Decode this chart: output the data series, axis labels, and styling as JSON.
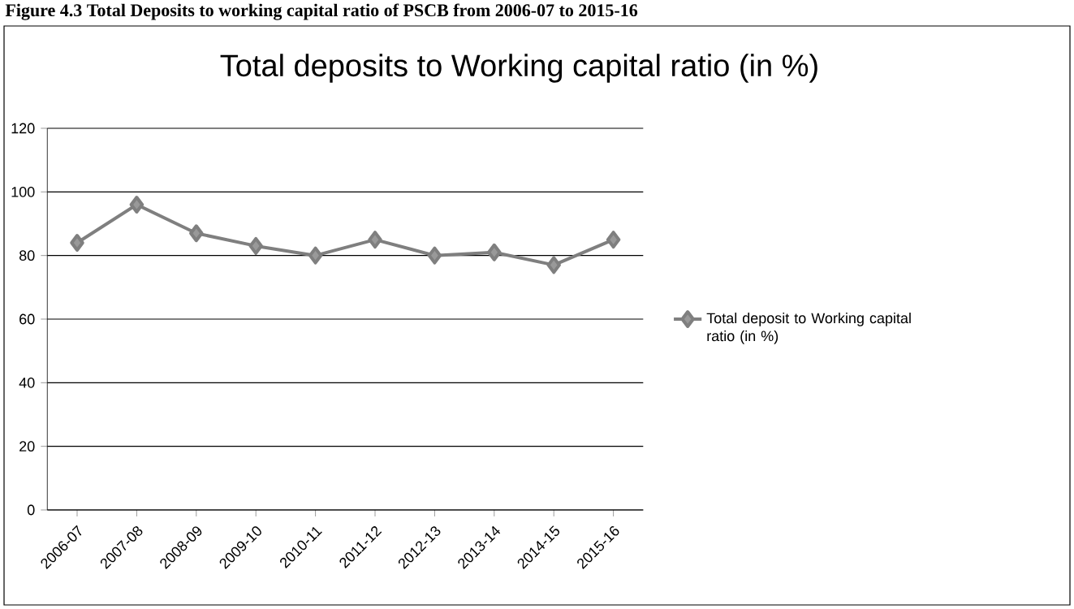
{
  "chart_data": {
    "type": "line",
    "title": "Total deposits to Working capital ratio (in %)",
    "annotations": [
      "Figure 4.3 Total Deposits to working capital ratio of PSCB from 2006-07 to 2015-16"
    ],
    "categories": [
      "2006-07",
      "2007-08",
      "2008-09",
      "2009-10",
      "2010-11",
      "2011-12",
      "2012-13",
      "2013-14",
      "2014-15",
      "2015-16"
    ],
    "series": [
      {
        "name": "Total deposit to Working capital ratio (in %)",
        "color": "#7f7f7f",
        "values": [
          84,
          96,
          87,
          83,
          80,
          85,
          80,
          81,
          77,
          85
        ]
      }
    ],
    "ylim": [
      0,
      120
    ],
    "yticks": [
      0,
      20,
      40,
      60,
      80,
      100,
      120
    ],
    "grid": "y",
    "legend": "right",
    "marker": "diamond",
    "line_style": "solid"
  }
}
